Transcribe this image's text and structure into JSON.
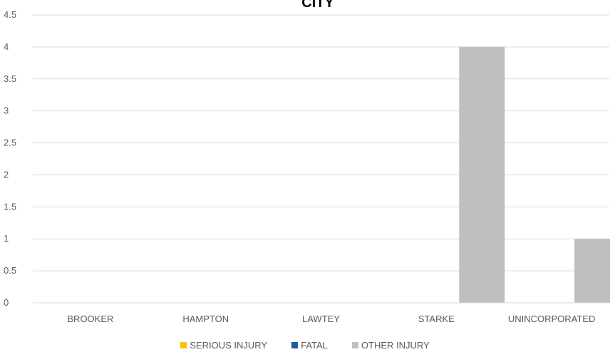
{
  "chart_data": {
    "type": "bar",
    "title": "CITY",
    "categories": [
      "BROOKER",
      "HAMPTON",
      "LAWTEY",
      "STARKE",
      "UNINCORPORATED"
    ],
    "series": [
      {
        "name": "SERIOUS INJURY",
        "color": "#FFC000",
        "values": [
          0,
          0,
          0,
          0,
          0
        ]
      },
      {
        "name": "FATAL",
        "color": "#1F5C99",
        "values": [
          0,
          0,
          0,
          0,
          0
        ]
      },
      {
        "name": "OTHER INJURY",
        "color": "#BFBFBF",
        "values": [
          0,
          0,
          0,
          4,
          1
        ]
      }
    ],
    "ylim": [
      0,
      4.5
    ],
    "yticks": [
      "0",
      "0.5",
      "1",
      "1.5",
      "2",
      "2.5",
      "3",
      "3.5",
      "4",
      "4.5"
    ],
    "grid": true,
    "legend": "bottom"
  }
}
